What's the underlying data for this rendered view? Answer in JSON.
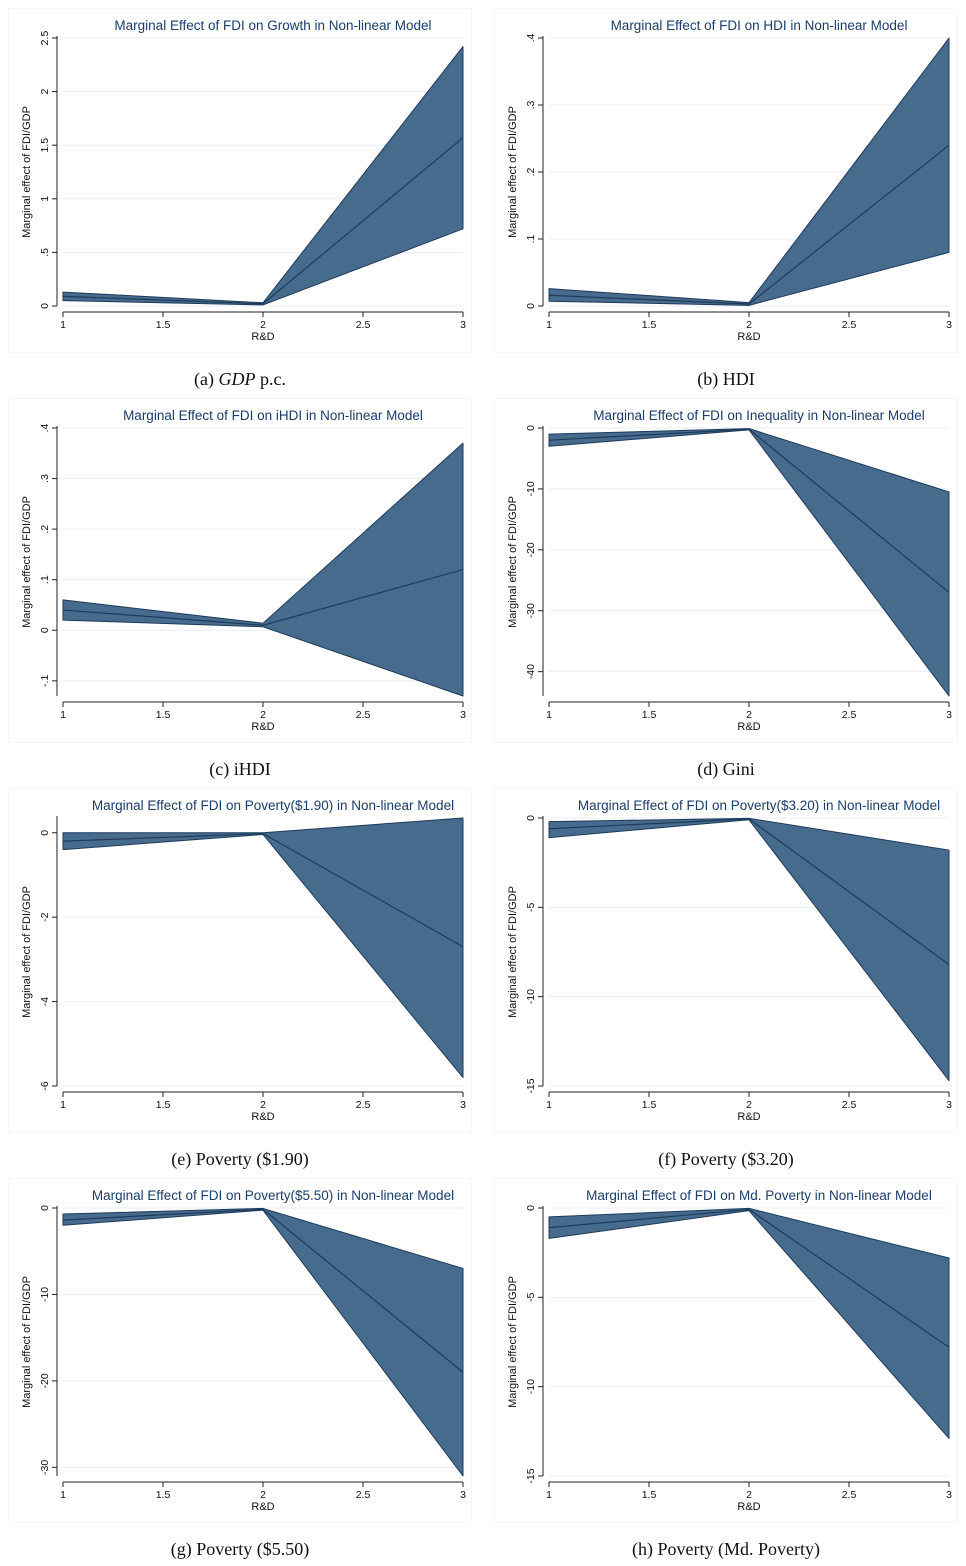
{
  "colors": {
    "band_fill": "#476b8d",
    "band_stroke": "#1d3b5c",
    "line": "#1d3b5c",
    "grid": "#e8edf2",
    "title": "#1a3d6b",
    "frame": "#f4f6f8"
  },
  "chart_data": [
    {
      "type": "area",
      "title": "Marginal Effect of FDI on Growth in Non-linear Model",
      "xlabel": "R&D",
      "ylabel": "Marginal effect of FDI/GDP",
      "x": [
        1,
        2,
        3
      ],
      "xlim": [
        1,
        3
      ],
      "xticks": [
        "1",
        "1.5",
        "2",
        "2.5",
        "3"
      ],
      "xtick_values": [
        1,
        1.5,
        2,
        2.5,
        3
      ],
      "ylim": [
        0,
        2.5
      ],
      "yticks": [
        "0",
        ".5",
        "1",
        "1.5",
        "2",
        "2.5"
      ],
      "ytick_values": [
        0,
        0.5,
        1,
        1.5,
        2,
        2.5
      ],
      "grid": true,
      "series": [
        {
          "role": "estimate",
          "values": [
            0.09,
            0.02,
            1.57
          ]
        },
        {
          "role": "lower",
          "values": [
            0.05,
            0.01,
            0.72
          ]
        },
        {
          "role": "upper",
          "values": [
            0.13,
            0.03,
            2.42
          ]
        }
      ],
      "caption_label": "(a)",
      "caption_var": "GDP",
      "caption_rest": "p.c."
    },
    {
      "type": "area",
      "title": "Marginal Effect of FDI on HDI in Non-linear Model",
      "xlabel": "R&D",
      "ylabel": "Marginal effect of FDI/GDP",
      "x": [
        1,
        2,
        3
      ],
      "xlim": [
        1,
        3
      ],
      "xticks": [
        "1",
        "1.5",
        "2",
        "2.5",
        "3"
      ],
      "xtick_values": [
        1,
        1.5,
        2,
        2.5,
        3
      ],
      "ylim": [
        0,
        0.4
      ],
      "yticks": [
        "0",
        ".1",
        ".2",
        ".3",
        ".4"
      ],
      "ytick_values": [
        0,
        0.1,
        0.2,
        0.3,
        0.4
      ],
      "grid": true,
      "series": [
        {
          "role": "estimate",
          "values": [
            0.016,
            0.003,
            0.24
          ]
        },
        {
          "role": "lower",
          "values": [
            0.007,
            0.001,
            0.08
          ]
        },
        {
          "role": "upper",
          "values": [
            0.026,
            0.005,
            0.4
          ]
        }
      ],
      "caption_label": "(b)",
      "caption_var": "",
      "caption_rest": "HDI"
    },
    {
      "type": "area",
      "title": "Marginal Effect of FDI on iHDI in Non-linear Model",
      "xlabel": "R&D",
      "ylabel": "Marginal effect of FDI/GDP",
      "x": [
        1,
        2,
        3
      ],
      "xlim": [
        1,
        3
      ],
      "xticks": [
        "1",
        "1.5",
        "2",
        "2.5",
        "3"
      ],
      "xtick_values": [
        1,
        1.5,
        2,
        2.5,
        3
      ],
      "ylim": [
        -0.13,
        0.4
      ],
      "yticks": [
        "-.1",
        "0",
        ".1",
        ".2",
        ".3",
        ".4"
      ],
      "ytick_values": [
        -0.1,
        0,
        0.1,
        0.2,
        0.3,
        0.4
      ],
      "grid": true,
      "series": [
        {
          "role": "estimate",
          "values": [
            0.04,
            0.01,
            0.12
          ]
        },
        {
          "role": "lower",
          "values": [
            0.02,
            0.007,
            -0.13
          ]
        },
        {
          "role": "upper",
          "values": [
            0.06,
            0.014,
            0.37
          ]
        }
      ],
      "caption_label": "(c)",
      "caption_var": "",
      "caption_rest": "iHDI"
    },
    {
      "type": "area",
      "title": "Marginal Effect of FDI on Inequality in Non-linear Model",
      "xlabel": "R&D",
      "ylabel": "Marginal effect of FDI/GDP",
      "x": [
        1,
        2,
        3
      ],
      "xlim": [
        1,
        3
      ],
      "xticks": [
        "1",
        "1.5",
        "2",
        "2.5",
        "3"
      ],
      "xtick_values": [
        1,
        1.5,
        2,
        2.5,
        3
      ],
      "ylim": [
        -44,
        0
      ],
      "yticks": [
        "-40",
        "-30",
        "-20",
        "-10",
        "0"
      ],
      "ytick_values": [
        -40,
        -30,
        -20,
        -10,
        0
      ],
      "grid": true,
      "series": [
        {
          "role": "estimate",
          "values": [
            -2.0,
            -0.2,
            -27.0
          ]
        },
        {
          "role": "lower",
          "values": [
            -3.0,
            -0.3,
            -44.0
          ]
        },
        {
          "role": "upper",
          "values": [
            -1.0,
            -0.1,
            -10.5
          ]
        }
      ],
      "caption_label": "(d)",
      "caption_var": "",
      "caption_rest": "Gini"
    },
    {
      "type": "area",
      "title": "Marginal Effect of FDI on Poverty($1.90) in Non-linear Model",
      "xlabel": "R&D",
      "ylabel": "Marginal effect of FDI/GDP",
      "x": [
        1,
        2,
        3
      ],
      "xlim": [
        1,
        3
      ],
      "xticks": [
        "1",
        "1.5",
        "2",
        "2.5",
        "3"
      ],
      "xtick_values": [
        1,
        1.5,
        2,
        2.5,
        3
      ],
      "ylim": [
        -6,
        0.35
      ],
      "yticks": [
        "-6",
        "-4",
        "-2",
        "0"
      ],
      "ytick_values": [
        -6,
        -4,
        -2,
        0
      ],
      "grid": true,
      "series": [
        {
          "role": "estimate",
          "values": [
            -0.2,
            -0.02,
            -2.7
          ]
        },
        {
          "role": "lower",
          "values": [
            -0.4,
            -0.04,
            -5.8
          ]
        },
        {
          "role": "upper",
          "values": [
            0.0,
            0.0,
            0.35
          ]
        }
      ],
      "caption_label": "(e)",
      "caption_var": "",
      "caption_rest": "Poverty ($1.90)"
    },
    {
      "type": "area",
      "title": "Marginal Effect of FDI on Poverty($3.20) in Non-linear Model",
      "xlabel": "R&D",
      "ylabel": "Marginal effect of FDI/GDP",
      "x": [
        1,
        2,
        3
      ],
      "xlim": [
        1,
        3
      ],
      "xticks": [
        "1",
        "1.5",
        "2",
        "2.5",
        "3"
      ],
      "xtick_values": [
        1,
        1.5,
        2,
        2.5,
        3
      ],
      "ylim": [
        -15,
        0
      ],
      "yticks": [
        "-15",
        "-10",
        "-5",
        "0"
      ],
      "ytick_values": [
        -15,
        -10,
        -5,
        0
      ],
      "grid": true,
      "series": [
        {
          "role": "estimate",
          "values": [
            -0.6,
            -0.05,
            -8.2
          ]
        },
        {
          "role": "lower",
          "values": [
            -1.1,
            -0.1,
            -14.7
          ]
        },
        {
          "role": "upper",
          "values": [
            -0.2,
            -0.02,
            -1.8
          ]
        }
      ],
      "caption_label": "(f)",
      "caption_var": "",
      "caption_rest": "Poverty ($3.20)"
    },
    {
      "type": "area",
      "title": "Marginal Effect of FDI on Poverty($5.50) in Non-linear Model",
      "xlabel": "R&D",
      "ylabel": "Marginal effect of FDI/GDP",
      "x": [
        1,
        2,
        3
      ],
      "xlim": [
        1,
        3
      ],
      "xticks": [
        "1",
        "1.5",
        "2",
        "2.5",
        "3"
      ],
      "xtick_values": [
        1,
        1.5,
        2,
        2.5,
        3
      ],
      "ylim": [
        -31,
        0
      ],
      "yticks": [
        "-30",
        "-20",
        "-10",
        "0"
      ],
      "ytick_values": [
        -30,
        -20,
        -10,
        0
      ],
      "grid": true,
      "series": [
        {
          "role": "estimate",
          "values": [
            -1.4,
            -0.15,
            -19.0
          ]
        },
        {
          "role": "lower",
          "values": [
            -2.0,
            -0.25,
            -31.0
          ]
        },
        {
          "role": "upper",
          "values": [
            -0.7,
            -0.05,
            -7.0
          ]
        }
      ],
      "caption_label": "(g)",
      "caption_var": "",
      "caption_rest": "Poverty ($5.50)"
    },
    {
      "type": "area",
      "title": "Marginal Effect of FDI on Md. Poverty in Non-linear Model",
      "xlabel": "R&D",
      "ylabel": "Marginal effect of FDI/GDP",
      "x": [
        1,
        2,
        3
      ],
      "xlim": [
        1,
        3
      ],
      "xticks": [
        "1",
        "1.5",
        "2",
        "2.5",
        "3"
      ],
      "xtick_values": [
        1,
        1.5,
        2,
        2.5,
        3
      ],
      "ylim": [
        -15,
        0
      ],
      "yticks": [
        "-15",
        "-10",
        "-5",
        "0"
      ],
      "ytick_values": [
        -15,
        -10,
        -5,
        0
      ],
      "grid": true,
      "series": [
        {
          "role": "estimate",
          "values": [
            -1.1,
            -0.08,
            -7.8
          ]
        },
        {
          "role": "lower",
          "values": [
            -1.7,
            -0.15,
            -12.9
          ]
        },
        {
          "role": "upper",
          "values": [
            -0.5,
            -0.02,
            -2.8
          ]
        }
      ],
      "caption_label": "(h)",
      "caption_var": "",
      "caption_rest": "Poverty (Md. Poverty)"
    }
  ]
}
